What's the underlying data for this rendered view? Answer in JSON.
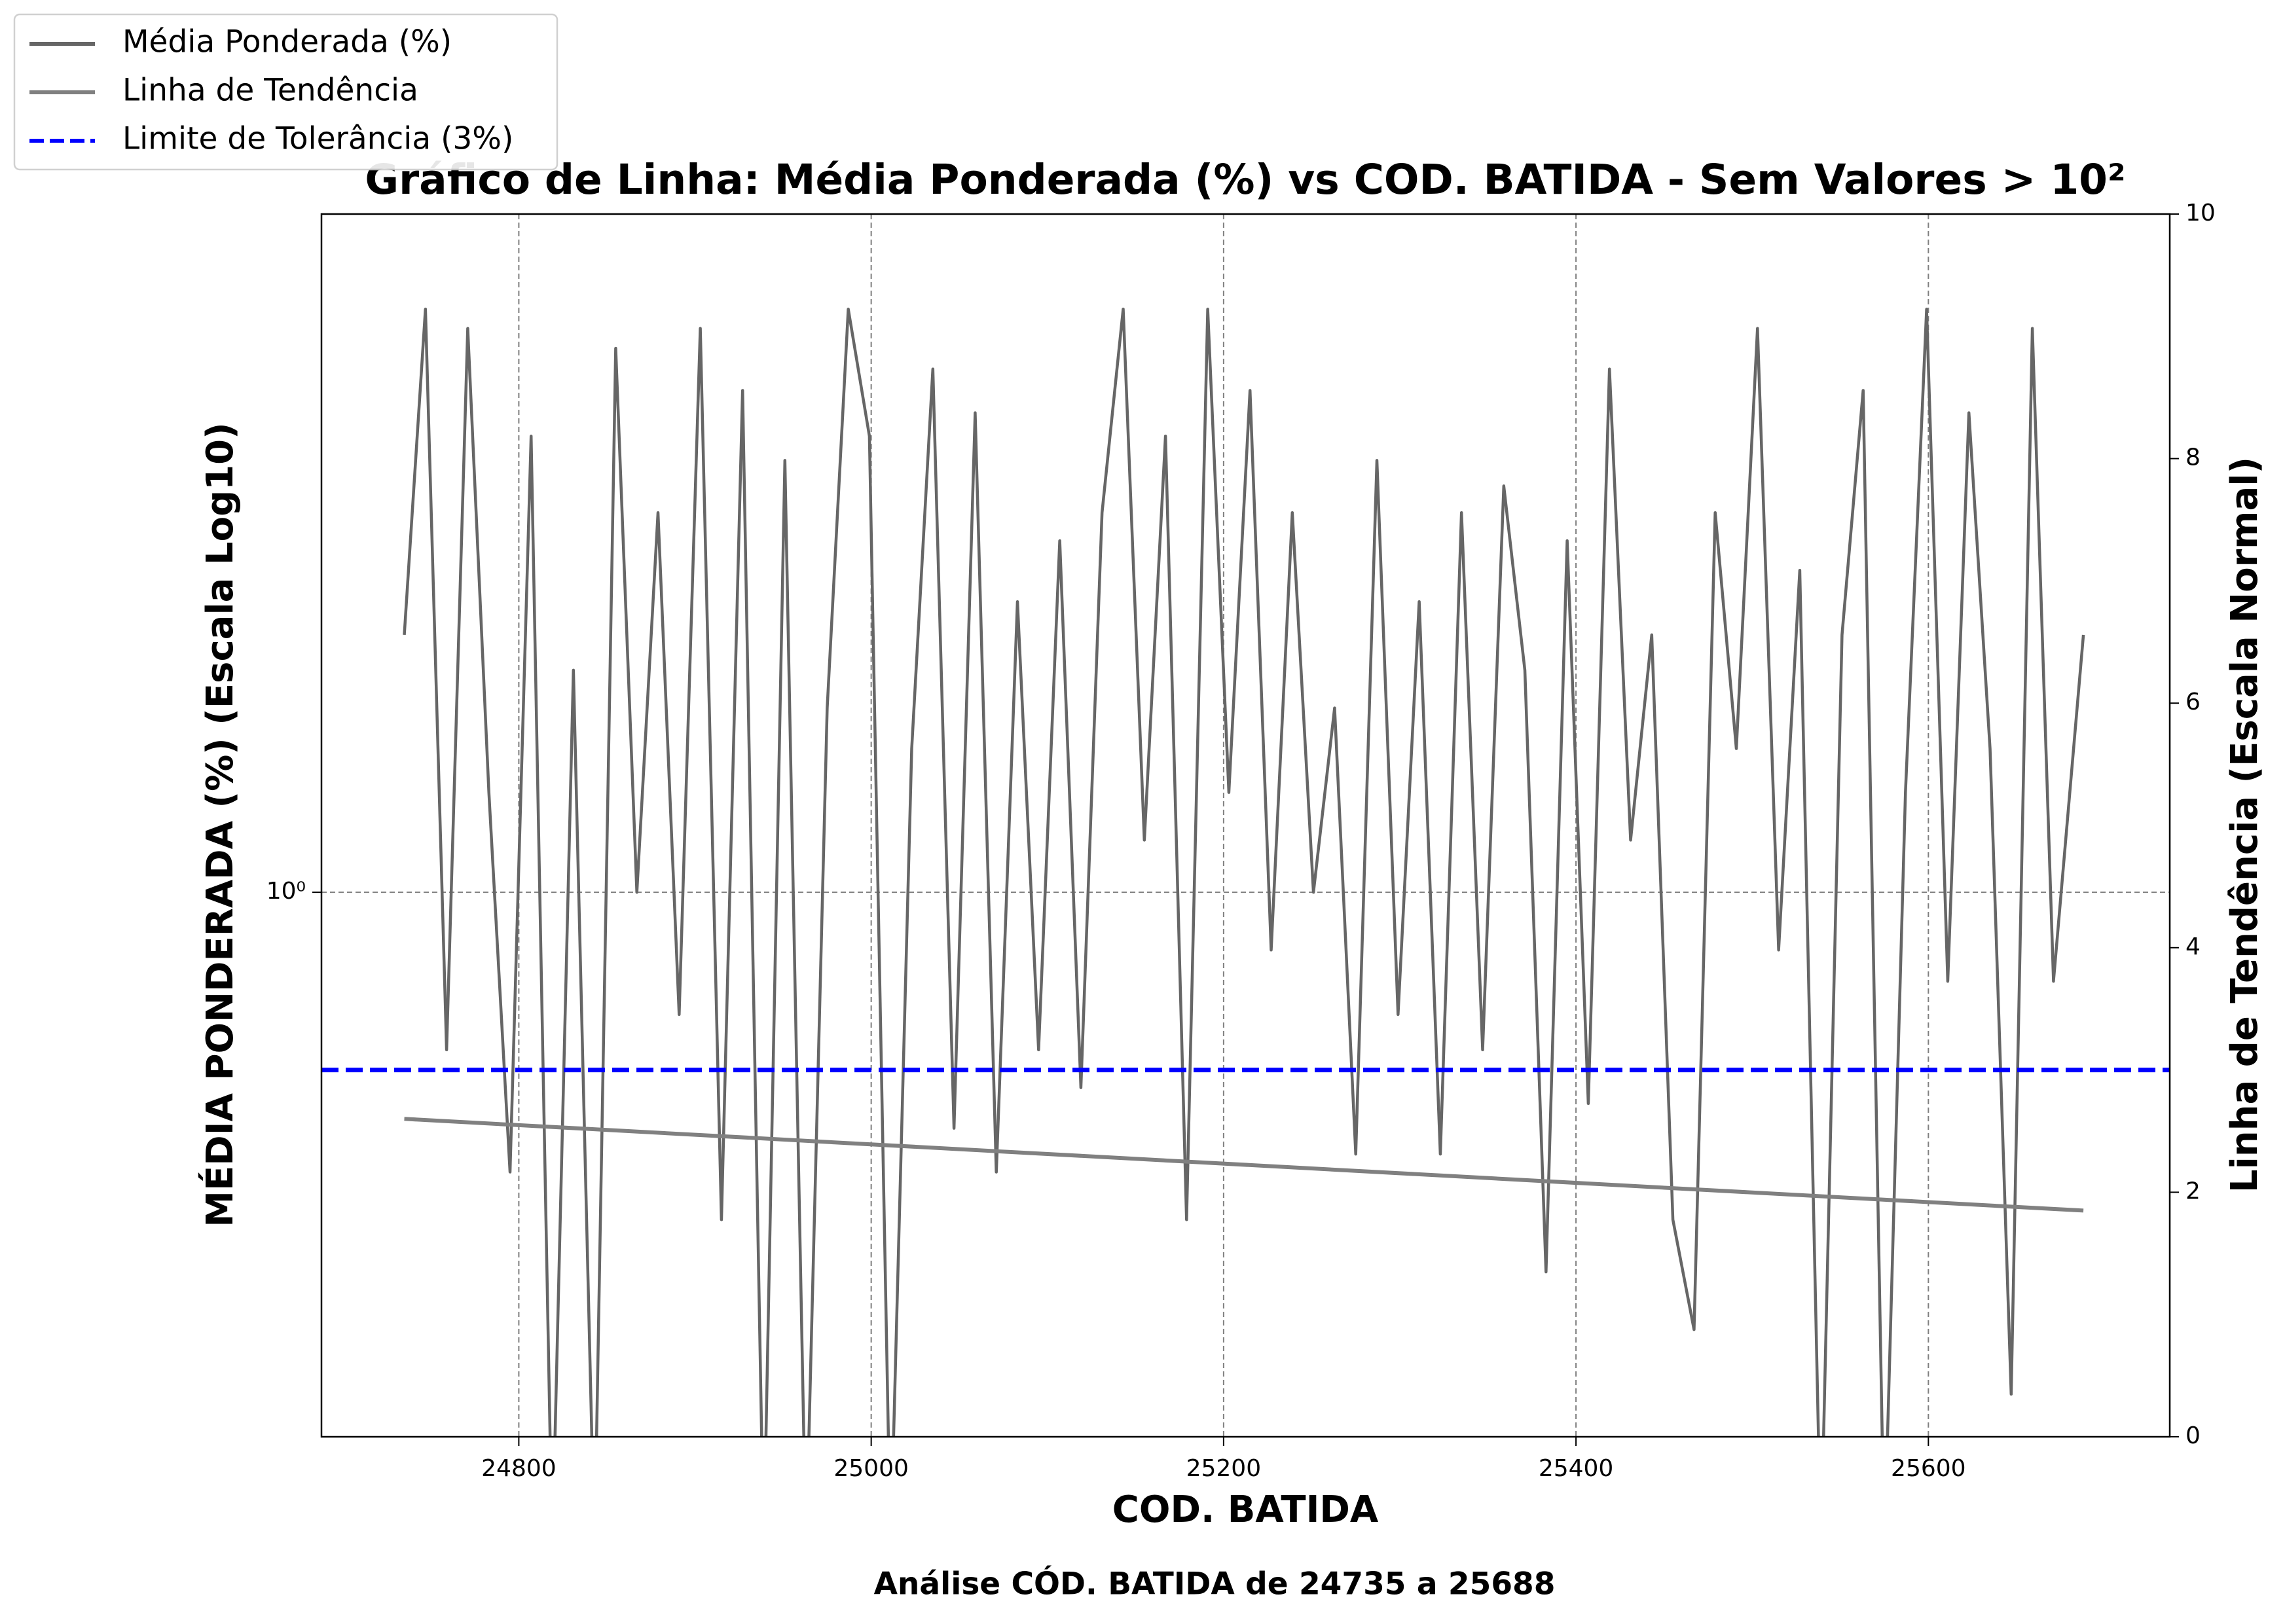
{
  "chart_data": {
    "type": "line",
    "title": "Gráfico de Linha: Média Ponderada (%) vs COD. BATIDA - Sem Valores > 10²",
    "subtitle": "Análise CÓD. BATIDA de 24735 a 25688",
    "x_label": "COD. BATIDA",
    "y_label": "MÉDIA PONDERADA (%) (Escala Log10)",
    "y2_label": "Linha de Tendência (Escala Normal)",
    "xlim": [
      24688,
      25737
    ],
    "xticks": [
      24800,
      25000,
      25200,
      25400,
      25600
    ],
    "ylim": [
      0.37,
      3.45
    ],
    "yscale": "log",
    "yticks": [
      {
        "value": 1,
        "label": "10⁰"
      }
    ],
    "y2lim": [
      0,
      10
    ],
    "y2ticks": [
      0,
      2,
      4,
      6,
      8,
      10
    ],
    "grid": true,
    "legend": "upper left",
    "series": [
      {
        "name": "Média Ponderada (%)",
        "color": "#666666",
        "x": [
          24735,
          24747,
          24759,
          24771,
          24783,
          24795,
          24807,
          24819,
          24831,
          24843,
          24855,
          24867,
          24879,
          24891,
          24903,
          24915,
          24927,
          24939,
          24951,
          24963,
          24975,
          24987,
          24999,
          25011,
          25023,
          25035,
          25047,
          25059,
          25071,
          25083,
          25095,
          25107,
          25119,
          25131,
          25143,
          25155,
          25167,
          25179,
          25191,
          25203,
          25215,
          25227,
          25239,
          25251,
          25263,
          25275,
          25287,
          25299,
          25311,
          25323,
          25335,
          25347,
          25359,
          25371,
          25383,
          25395,
          25407,
          25419,
          25431,
          25443,
          25455,
          25467,
          25479,
          25491,
          25503,
          25515,
          25527,
          25539,
          25551,
          25563,
          25575,
          25587,
          25599,
          25611,
          25623,
          25635,
          25647,
          25659,
          25671,
          25688
        ],
        "values": [
          1.6,
          2.9,
          0.75,
          2.8,
          1.2,
          0.6,
          2.3,
          0.3,
          1.5,
          0.3,
          2.7,
          1.0,
          2.0,
          0.8,
          2.8,
          0.55,
          2.5,
          0.3,
          2.2,
          0.3,
          1.4,
          2.9,
          2.3,
          0.3,
          1.3,
          2.6,
          0.65,
          2.4,
          0.6,
          1.7,
          0.75,
          1.9,
          0.7,
          2.0,
          2.9,
          1.1,
          2.3,
          0.55,
          2.9,
          1.2,
          2.5,
          0.9,
          2.0,
          1.0,
          1.4,
          0.62,
          2.2,
          0.8,
          1.7,
          0.62,
          2.0,
          0.75,
          2.1,
          1.5,
          0.5,
          1.9,
          0.68,
          2.6,
          1.1,
          1.6,
          0.55,
          0.45,
          2.0,
          1.3,
          2.8,
          0.9,
          1.8,
          0.3,
          1.6,
          2.5,
          0.3,
          1.2,
          2.9,
          0.85,
          2.4,
          1.3,
          0.4,
          2.8,
          0.85,
          1.6
        ]
      },
      {
        "name": "Linha de Tendência",
        "color": "#808080",
        "axis": "y2",
        "x": [
          24735,
          25688
        ],
        "values": [
          2.6,
          1.85
        ]
      }
    ],
    "reference_line": {
      "name": "Limite de Tolerância (3%)",
      "value": 3,
      "axis": "y2",
      "color": "#0000ff"
    }
  }
}
